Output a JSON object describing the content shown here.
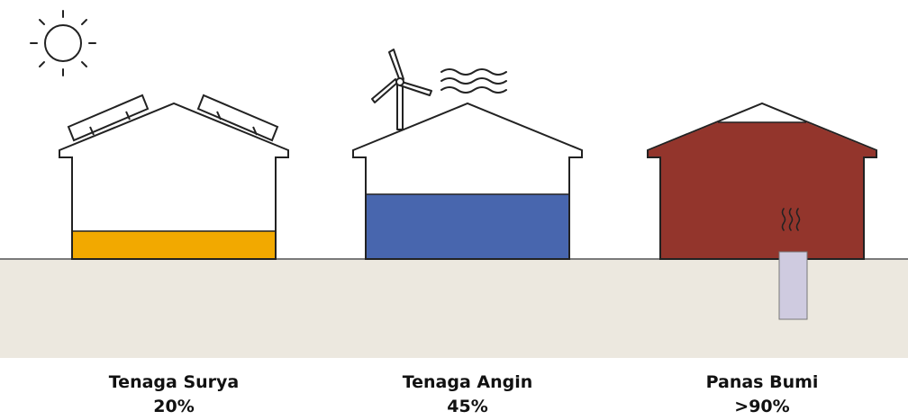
{
  "colors": {
    "ground": "#ece8df",
    "ground_line": "#7a7a7a",
    "outline": "#222222",
    "house_fill": "#ffffff",
    "solar_fill": "#f2a900",
    "wind_fill": "#4866ae",
    "geo_fill": "#93352c",
    "geo_pipe": "#cfcbe0"
  },
  "icons": {
    "sun": "sun-icon",
    "solar_panels": "solar-panel-icon",
    "wind_turbine": "wind-turbine-icon",
    "wind_lines": "wind-lines-icon",
    "heat": "heat-waves-icon"
  },
  "houses": [
    {
      "id": "solar",
      "label": "Tenaga Surya",
      "value_text": "20%",
      "fill_fraction": 0.2,
      "fill_color": "#f2a900"
    },
    {
      "id": "wind",
      "label": "Tenaga Angin",
      "value_text": "45%",
      "fill_fraction": 0.45,
      "fill_color": "#4866ae"
    },
    {
      "id": "geo",
      "label": "Panas Bumi",
      "value_text": ">90%",
      "fill_fraction": 0.9,
      "fill_color": "#93352c"
    }
  ]
}
